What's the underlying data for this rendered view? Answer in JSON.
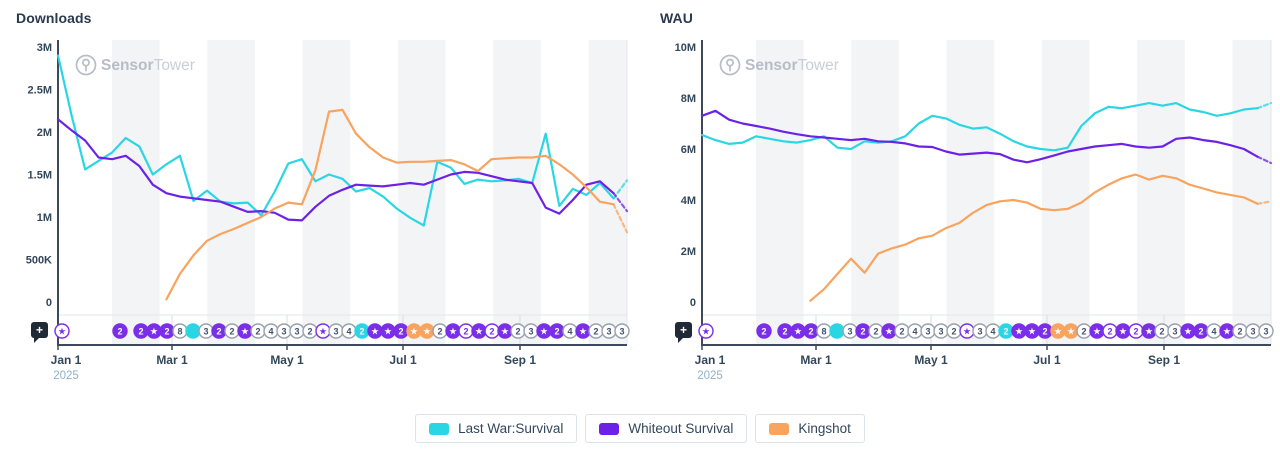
{
  "watermark": {
    "bold": "Sensor",
    "light": "Tower"
  },
  "add_annotation_button": {
    "label": "+"
  },
  "x_year_label": "2025",
  "legend": {
    "items": [
      {
        "label": "Last War:Survival",
        "color": "#2bd6e4"
      },
      {
        "label": "Whiteout Survival",
        "color": "#6c22e6"
      },
      {
        "label": "Kingshot",
        "color": "#f8a35e"
      }
    ]
  },
  "colors": {
    "axis": "#3e4a5b",
    "tick_text": "#33475b",
    "year_text": "#8fb3c6",
    "stripe": "#f3f4f6",
    "light_border": "#e3e6ea",
    "strip_gridline": "#d8dce1",
    "watermark_bold": "#b7bdc6",
    "watermark_light": "#c9ced5",
    "badge_gray": "#97a0ac",
    "badge_text_gray": "#42506a",
    "plus_button": "#202a36"
  },
  "chart_data": [
    {
      "type": "line",
      "title": "Downloads",
      "unit": "M",
      "ylim": [
        0,
        3
      ],
      "y_ticks": [
        {
          "label": "3M",
          "value": 3
        },
        {
          "label": "2.5M",
          "value": 2.5
        },
        {
          "label": "2M",
          "value": 2
        },
        {
          "label": "1.5M",
          "value": 1.5
        },
        {
          "label": "1M",
          "value": 1
        },
        {
          "label": "500K",
          "value": 0.5
        },
        {
          "label": "0",
          "value": 0
        }
      ],
      "x_ticks": [
        {
          "label": "Jan 1",
          "pos": 0
        },
        {
          "label": "Mar 1",
          "pos": 114
        },
        {
          "label": "May 1",
          "pos": 229
        },
        {
          "label": "Jul 1",
          "pos": 345
        },
        {
          "label": "Sep 1",
          "pos": 462
        }
      ],
      "forecast_dashed_tail": true,
      "series": [
        {
          "name": "Last War:Survival",
          "color": "#2bd6e4",
          "values": [
            2.9,
            2.2,
            1.56,
            1.66,
            1.76,
            1.93,
            1.83,
            1.5,
            1.62,
            1.72,
            1.19,
            1.31,
            1.18,
            1.16,
            1.17,
            1.02,
            1.3,
            1.63,
            1.68,
            1.42,
            1.5,
            1.45,
            1.3,
            1.34,
            1.24,
            1.1,
            0.99,
            0.9,
            1.65,
            1.58,
            1.39,
            1.44,
            1.42,
            1.43,
            1.45,
            1.4,
            1.98,
            1.13,
            1.33,
            1.26,
            1.4,
            1.22,
            1.43
          ]
        },
        {
          "name": "Whiteout Survival",
          "color": "#6c22e6",
          "values": [
            2.15,
            2.02,
            1.9,
            1.7,
            1.68,
            1.72,
            1.6,
            1.38,
            1.28,
            1.24,
            1.22,
            1.2,
            1.18,
            1.12,
            1.06,
            1.07,
            1.05,
            0.97,
            0.96,
            1.12,
            1.25,
            1.32,
            1.38,
            1.37,
            1.36,
            1.38,
            1.4,
            1.38,
            1.44,
            1.5,
            1.53,
            1.52,
            1.48,
            1.44,
            1.42,
            1.4,
            1.11,
            1.04,
            1.2,
            1.38,
            1.42,
            1.28,
            1.07
          ]
        },
        {
          "name": "Kingshot",
          "color": "#f8a35e",
          "values": [
            null,
            null,
            null,
            null,
            null,
            null,
            null,
            null,
            0.03,
            0.33,
            0.55,
            0.72,
            0.8,
            0.86,
            0.93,
            1.0,
            1.1,
            1.17,
            1.15,
            1.55,
            2.24,
            2.26,
            1.98,
            1.82,
            1.7,
            1.64,
            1.65,
            1.65,
            1.66,
            1.67,
            1.62,
            1.54,
            1.68,
            1.69,
            1.7,
            1.7,
            1.72,
            1.62,
            1.5,
            1.35,
            1.18,
            1.15,
            0.82
          ]
        }
      ]
    },
    {
      "type": "line",
      "title": "WAU",
      "unit": "M",
      "ylim": [
        0,
        10
      ],
      "y_ticks": [
        {
          "label": "10M",
          "value": 10
        },
        {
          "label": "8M",
          "value": 8
        },
        {
          "label": "6M",
          "value": 6
        },
        {
          "label": "4M",
          "value": 4
        },
        {
          "label": "2M",
          "value": 2
        },
        {
          "label": "0",
          "value": 0
        }
      ],
      "x_ticks": [
        {
          "label": "Jan 1",
          "pos": 0
        },
        {
          "label": "Mar 1",
          "pos": 114
        },
        {
          "label": "May 1",
          "pos": 229
        },
        {
          "label": "Jul 1",
          "pos": 345
        },
        {
          "label": "Sep 1",
          "pos": 462
        }
      ],
      "forecast_dashed_tail": true,
      "series": [
        {
          "name": "Last War:Survival",
          "color": "#2bd6e4",
          "values": [
            6.55,
            6.35,
            6.2,
            6.25,
            6.5,
            6.4,
            6.3,
            6.25,
            6.35,
            6.5,
            6.05,
            6.0,
            6.3,
            6.25,
            6.3,
            6.5,
            7.0,
            7.3,
            7.2,
            6.95,
            6.8,
            6.85,
            6.6,
            6.3,
            6.1,
            6.0,
            5.95,
            6.05,
            6.9,
            7.4,
            7.65,
            7.6,
            7.7,
            7.8,
            7.7,
            7.8,
            7.55,
            7.45,
            7.3,
            7.4,
            7.55,
            7.6,
            7.8
          ]
        },
        {
          "name": "Whiteout Survival",
          "color": "#6c22e6",
          "values": [
            7.3,
            7.5,
            7.15,
            7.0,
            6.9,
            6.8,
            6.68,
            6.58,
            6.5,
            6.45,
            6.4,
            6.35,
            6.4,
            6.3,
            6.28,
            6.22,
            6.1,
            6.08,
            5.9,
            5.78,
            5.82,
            5.86,
            5.8,
            5.58,
            5.48,
            5.6,
            5.75,
            5.9,
            6.0,
            6.1,
            6.15,
            6.2,
            6.1,
            6.05,
            6.1,
            6.4,
            6.45,
            6.35,
            6.28,
            6.15,
            6.0,
            5.7,
            5.45
          ]
        },
        {
          "name": "Kingshot",
          "color": "#f8a35e",
          "values": [
            null,
            null,
            null,
            null,
            null,
            null,
            null,
            null,
            0.05,
            0.5,
            1.1,
            1.7,
            1.15,
            1.9,
            2.1,
            2.25,
            2.5,
            2.6,
            2.9,
            3.1,
            3.5,
            3.8,
            3.95,
            4.0,
            3.9,
            3.65,
            3.6,
            3.65,
            3.9,
            4.3,
            4.6,
            4.85,
            5.0,
            4.8,
            4.95,
            4.85,
            4.6,
            4.45,
            4.3,
            4.2,
            4.1,
            3.85,
            3.95
          ]
        }
      ]
    }
  ],
  "event_badges": [
    {
      "x": 4,
      "t": "★",
      "s": "po"
    },
    {
      "x": 62,
      "t": "2",
      "s": "p"
    },
    {
      "x": 83,
      "t": "2",
      "s": "p"
    },
    {
      "x": 96,
      "t": "★",
      "s": "p"
    },
    {
      "x": 109,
      "t": "2",
      "s": "p"
    },
    {
      "x": 122,
      "t": "8",
      "s": "g"
    },
    {
      "x": 135,
      "t": "",
      "s": "c"
    },
    {
      "x": 148,
      "t": "3",
      "s": "g"
    },
    {
      "x": 161,
      "t": "2",
      "s": "p"
    },
    {
      "x": 174,
      "t": "2",
      "s": "g"
    },
    {
      "x": 187,
      "t": "★",
      "s": "p"
    },
    {
      "x": 200,
      "t": "2",
      "s": "g"
    },
    {
      "x": 213,
      "t": "4",
      "s": "g"
    },
    {
      "x": 226,
      "t": "3",
      "s": "g"
    },
    {
      "x": 239,
      "t": "3",
      "s": "g"
    },
    {
      "x": 252,
      "t": "2",
      "s": "g"
    },
    {
      "x": 265,
      "t": "★",
      "s": "po"
    },
    {
      "x": 278,
      "t": "3",
      "s": "g"
    },
    {
      "x": 291,
      "t": "4",
      "s": "g"
    },
    {
      "x": 304,
      "t": "2",
      "s": "c"
    },
    {
      "x": 317,
      "t": "★",
      "s": "p"
    },
    {
      "x": 330,
      "t": "★",
      "s": "p"
    },
    {
      "x": 343,
      "t": "2",
      "s": "p"
    },
    {
      "x": 356,
      "t": "★",
      "s": "o"
    },
    {
      "x": 369,
      "t": "★",
      "s": "o"
    },
    {
      "x": 382,
      "t": "2",
      "s": "g"
    },
    {
      "x": 395,
      "t": "★",
      "s": "p"
    },
    {
      "x": 408,
      "t": "2",
      "s": "po"
    },
    {
      "x": 421,
      "t": "★",
      "s": "p"
    },
    {
      "x": 434,
      "t": "2",
      "s": "po"
    },
    {
      "x": 447,
      "t": "★",
      "s": "p"
    },
    {
      "x": 460,
      "t": "2",
      "s": "g"
    },
    {
      "x": 473,
      "t": "3",
      "s": "g"
    },
    {
      "x": 486,
      "t": "★",
      "s": "p"
    },
    {
      "x": 499,
      "t": "2",
      "s": "p"
    },
    {
      "x": 512,
      "t": "4",
      "s": "g"
    },
    {
      "x": 525,
      "t": "★",
      "s": "p"
    },
    {
      "x": 538,
      "t": "2",
      "s": "g"
    },
    {
      "x": 551,
      "t": "3",
      "s": "g"
    },
    {
      "x": 564,
      "t": "3",
      "s": "g"
    }
  ]
}
